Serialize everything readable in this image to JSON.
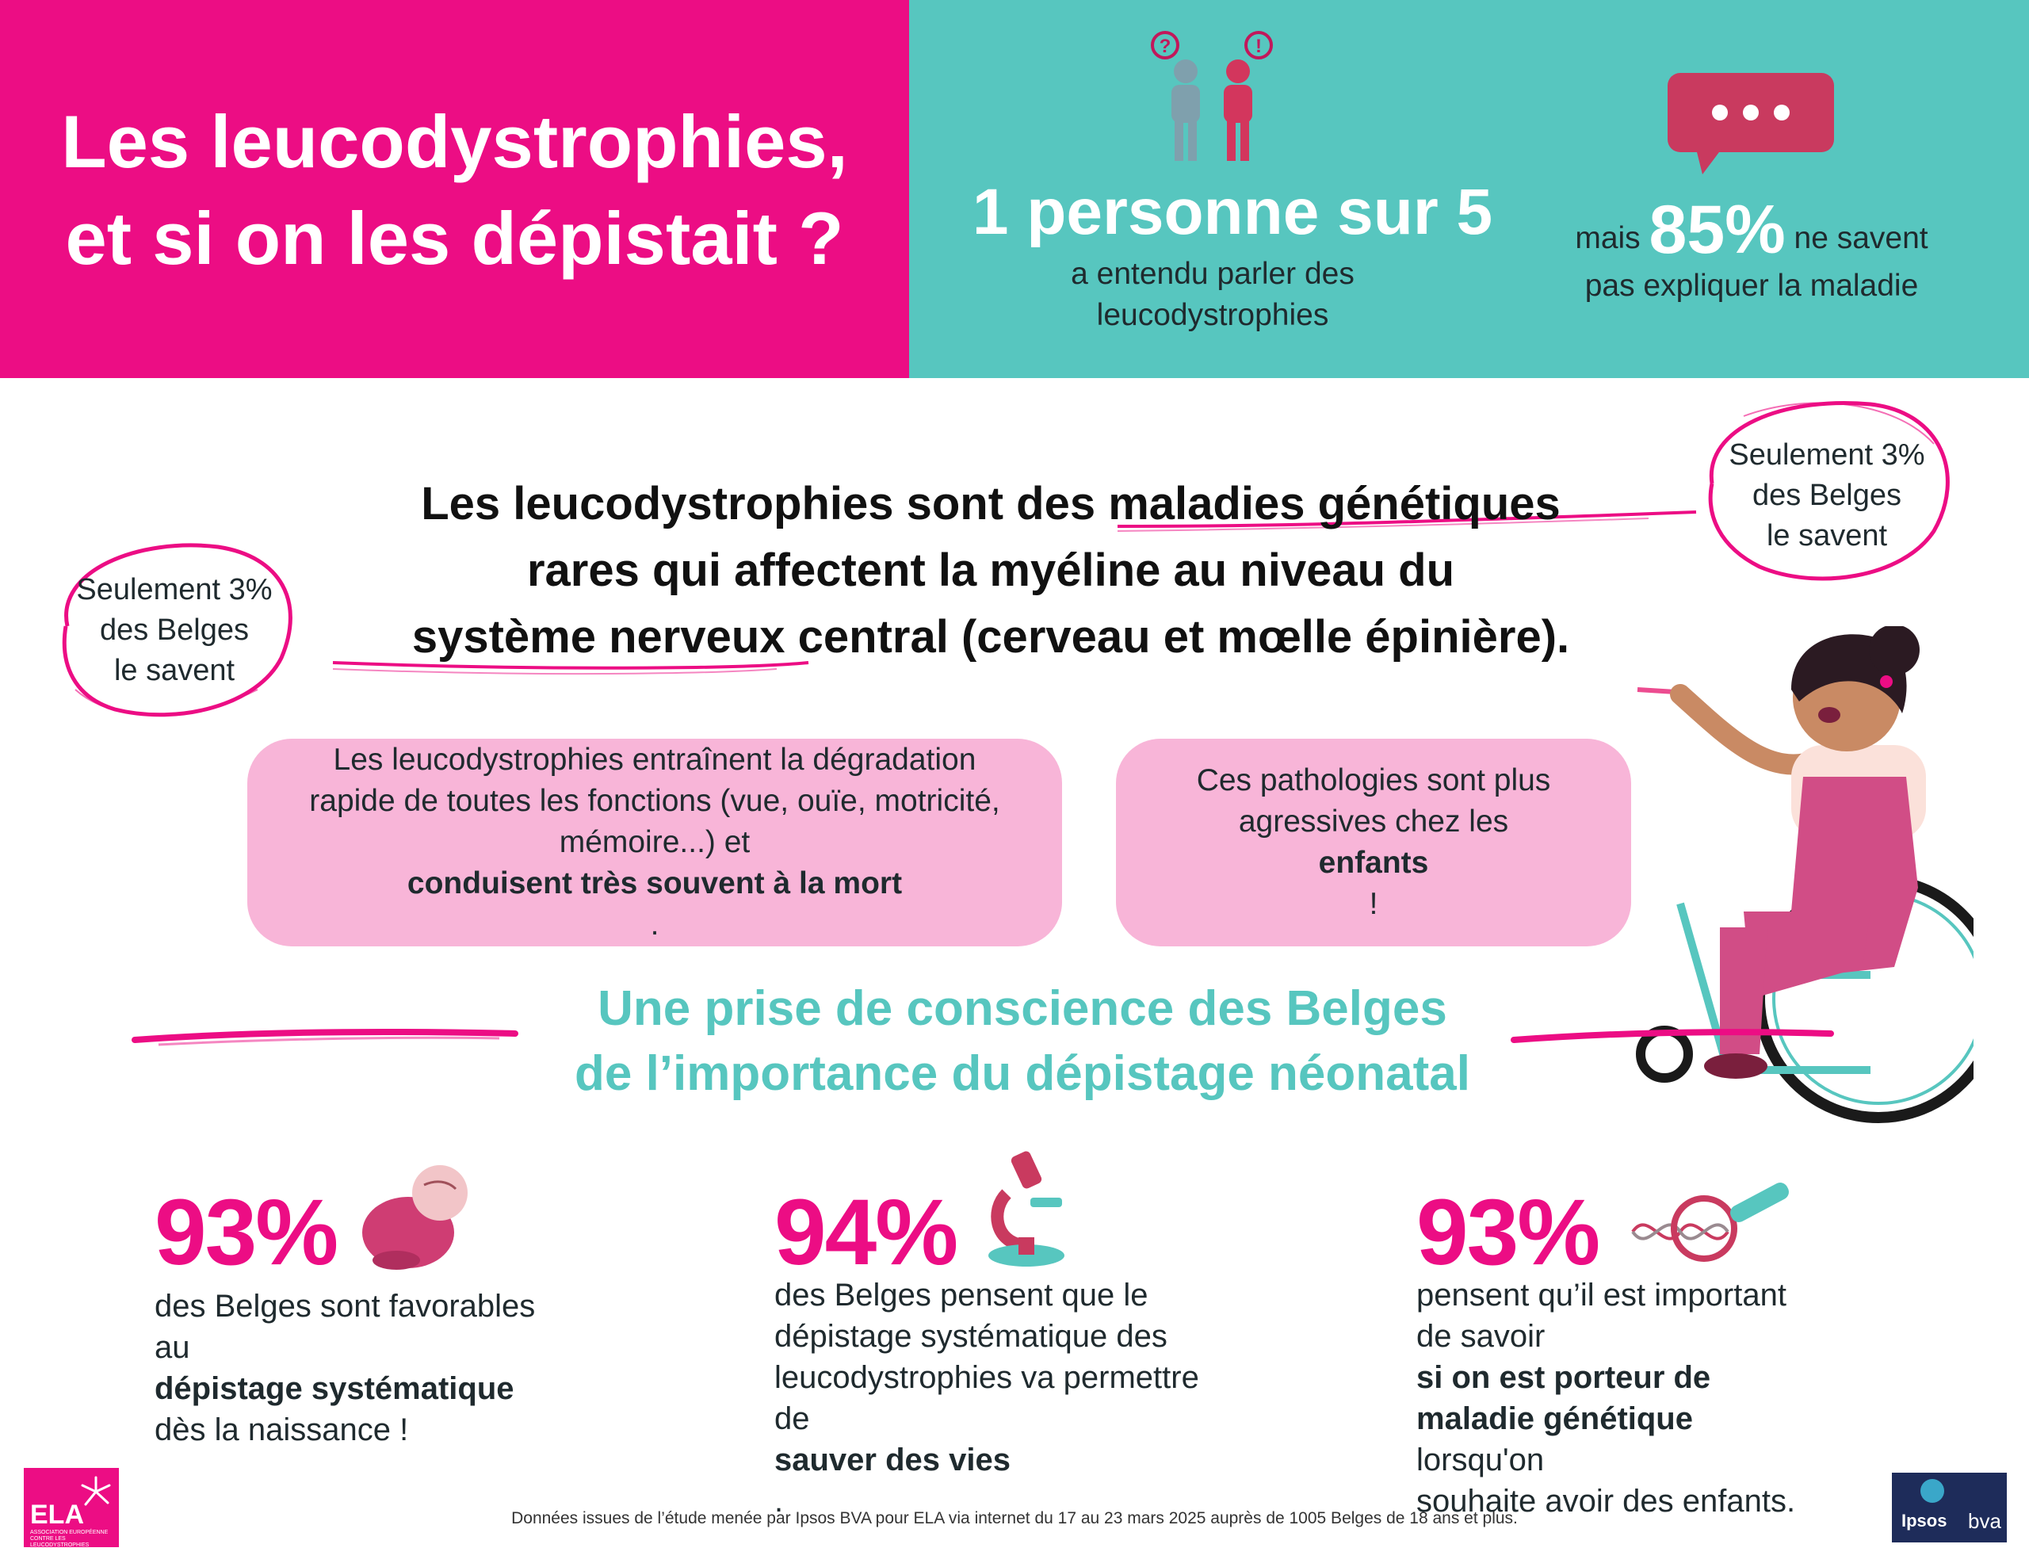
{
  "header": {
    "title_line1": "Les leucodystrophies,",
    "title_line2": "et si on les dépistait ?",
    "stat1": {
      "big": "1 personne sur 5",
      "line1": "a entendu parler des",
      "line2": "leucodystrophies",
      "icon": "two-people-question-exclamation-icon"
    },
    "stat2": {
      "prefix": "mais",
      "big": "85%",
      "suffix": "ne savent",
      "line2": "pas expliquer la maladie",
      "icon": "speech-bubble-ellipsis-icon"
    }
  },
  "bubble_left": {
    "line1": "Seulement 3%",
    "line2": "des Belges",
    "line3": "le savent"
  },
  "bubble_right": {
    "line1": "Seulement 3%",
    "line2": "des Belges",
    "line3": "le savent"
  },
  "definition": {
    "line1_a": "Les leucodystrophies sont des ",
    "line1_b": "maladies génétiques",
    "line2": "rares qui affectent la myéline au niveau du",
    "line3_a": "système nerveux central",
    "line3_b": " (cerveau et mœlle épinière)."
  },
  "card_left": {
    "line1": "Les leucodystrophies entraînent la dégradation",
    "line2": "rapide de toutes les fonctions (vue, ouïe, motricité,",
    "line3_a": "mémoire...) et ",
    "line3_b": "conduisent très souvent à la mort",
    "line3_c": "."
  },
  "card_right": {
    "line1": "Ces pathologies sont plus",
    "line2_a": "agressives chez les ",
    "line2_b": "enfants",
    "line2_c": " !"
  },
  "section_title": {
    "line1": "Une prise de conscience des Belges",
    "line2": "de l’importance du dépistage néonatal"
  },
  "stats": [
    {
      "pct": "93%",
      "icon": "baby-icon",
      "l1": "des Belges sont favorables",
      "l2_a": "au ",
      "l2_b": "dépistage systématique",
      "l3": "dès la naissance !"
    },
    {
      "pct": "94%",
      "icon": "microscope-icon",
      "l1": "des Belges pensent que le",
      "l2": "dépistage systématique des",
      "l3": "leucodystrophies va permettre",
      "l4_a": "de ",
      "l4_b": "sauver des vies",
      "l4_c": "."
    },
    {
      "pct": "93%",
      "icon": "dna-magnifier-icon",
      "l1": "pensent qu’il est important",
      "l2_a": "de savoir ",
      "l2_b": "si on est porteur de",
      "l3_a": "maladie génétique",
      "l3_b": " lorsqu'on",
      "l4": "souhaite avoir des enfants."
    }
  ],
  "footnote": "Données issues de l’étude menée par Ipsos BVA pour ELA via internet du 17 au 23 mars 2025 auprès de 1005 Belges de 18 ans et plus.",
  "logos": {
    "ela": "ELA",
    "ela_sub": "ASSOCIATION EUROPÉENNE CONTRE LES LEUCODYSTROPHIES",
    "ipsos": "Ipsos",
    "bva": "bva"
  },
  "colors": {
    "pink": "#ec0d84",
    "teal": "#57c6bf",
    "light_pink": "#f8b5d8"
  }
}
